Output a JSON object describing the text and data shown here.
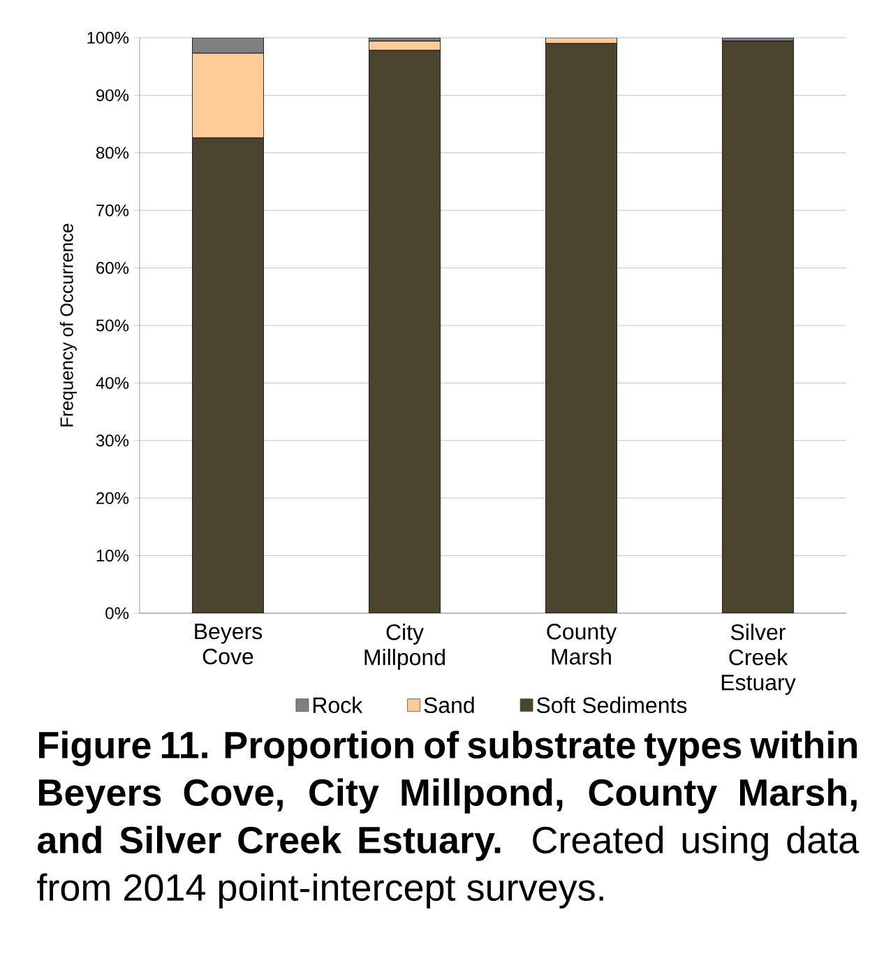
{
  "chart_data": {
    "type": "bar",
    "stacked": true,
    "title": "**Figure 11. Proportion of substrate types within Beyers Cove, City Millpond, County Marsh, and Silver Creek Estuary.** Created using data from 2014 point-intercept surveys.",
    "ylabel": "Frequency of Occurrence",
    "categories": [
      "Beyers Cove",
      "City Millpond",
      "County Marsh",
      "Silver Creek Estuary"
    ],
    "series": [
      {
        "name": "Soft Sediments",
        "color": "#4b452f",
        "values": [
          82.6,
          97.8,
          99.0,
          99.4
        ]
      },
      {
        "name": "Sand",
        "color": "#ffcc99",
        "values": [
          14.7,
          1.6,
          1.0,
          0
        ]
      },
      {
        "name": "Rock",
        "color": "#808080",
        "values": [
          2.7,
          0.6,
          0,
          0.6
        ]
      }
    ],
    "ylim": [
      0,
      100
    ],
    "yticks": [
      {
        "value": 0,
        "label": "0%"
      },
      {
        "value": 10,
        "label": "10%"
      },
      {
        "value": 20,
        "label": "20%"
      },
      {
        "value": 30,
        "label": "30%"
      },
      {
        "value": 40,
        "label": "40%"
      },
      {
        "value": 50,
        "label": "50%"
      },
      {
        "value": 60,
        "label": "60%"
      },
      {
        "value": 70,
        "label": "70%"
      },
      {
        "value": 80,
        "label": "80%"
      },
      {
        "value": 90,
        "label": "90%"
      },
      {
        "value": 100,
        "label": "100%"
      }
    ],
    "grid": "y",
    "legend": "bottom"
  }
}
